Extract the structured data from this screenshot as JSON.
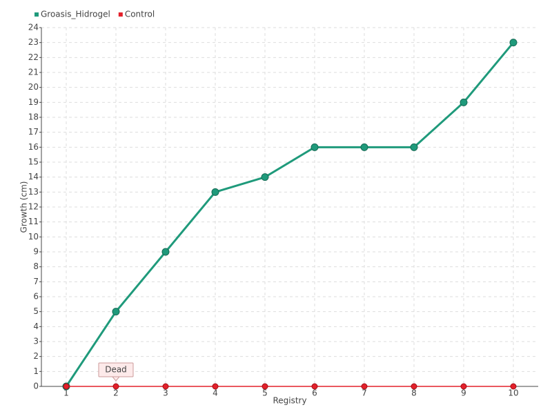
{
  "chart_data": {
    "type": "line",
    "categories": [
      "1",
      "2",
      "3",
      "4",
      "5",
      "6",
      "7",
      "8",
      "9",
      "10"
    ],
    "series": [
      {
        "name": "Groasis_Hidrogel",
        "color": "#1f9a7b",
        "values": [
          0,
          5,
          9,
          13,
          14,
          16,
          16,
          16,
          19,
          23
        ]
      },
      {
        "name": "Control",
        "color": "#e3202a",
        "values": [
          0,
          0,
          0,
          0,
          0,
          0,
          0,
          0,
          0,
          0
        ]
      }
    ],
    "x_label": "Registry",
    "y_label": "Growth (cm)",
    "annotation": "Dead",
    "ylim": [
      0,
      24
    ],
    "yticks": [
      0,
      1,
      2,
      3,
      4,
      5,
      6,
      7,
      8,
      9,
      10,
      11,
      12,
      13,
      14,
      15,
      16,
      17,
      18,
      19,
      20,
      21,
      22,
      23,
      24
    ],
    "grid": true
  }
}
